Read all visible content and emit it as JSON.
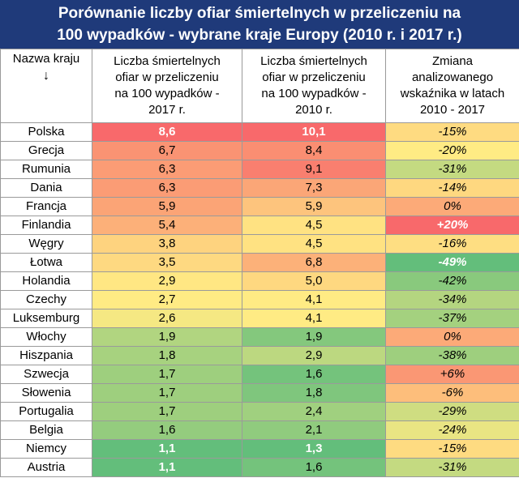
{
  "title_line1": "Porównanie liczby ofiar śmiertelnych w przeliczeniu na",
  "title_line2": "100 wypadków - wybrane kraje Europy (2010 r. i 2017 r.)",
  "headers": {
    "country": "Nazwa kraju",
    "country_arrow": "↓",
    "c2017": [
      "Liczba śmiertelnych",
      "ofiar w przeliczeniu",
      "na 100 wypadków -",
      "2017 r."
    ],
    "c2010": [
      "Liczba śmiertelnych",
      "ofiar w przeliczeniu",
      "na 100 wypadków -",
      "2010 r."
    ],
    "change": [
      "Zmiana",
      "analizowanego",
      "wskaźnika w latach",
      "2010 - 2017"
    ]
  },
  "rows": [
    {
      "country": "Polska",
      "v2017": "8,6",
      "v2010": "10,1",
      "change": "-15%"
    },
    {
      "country": "Grecja",
      "v2017": "6,7",
      "v2010": "8,4",
      "change": "-20%"
    },
    {
      "country": "Rumunia",
      "v2017": "6,3",
      "v2010": "9,1",
      "change": "-31%"
    },
    {
      "country": "Dania",
      "v2017": "6,3",
      "v2010": "7,3",
      "change": "-14%"
    },
    {
      "country": "Francja",
      "v2017": "5,9",
      "v2010": "5,9",
      "change": "0%"
    },
    {
      "country": "Finlandia",
      "v2017": "5,4",
      "v2010": "4,5",
      "change": "+20%"
    },
    {
      "country": "Węgry",
      "v2017": "3,8",
      "v2010": "4,5",
      "change": "-16%"
    },
    {
      "country": "Łotwa",
      "v2017": "3,5",
      "v2010": "6,8",
      "change": "-49%"
    },
    {
      "country": "Holandia",
      "v2017": "2,9",
      "v2010": "5,0",
      "change": "-42%"
    },
    {
      "country": "Czechy",
      "v2017": "2,7",
      "v2010": "4,1",
      "change": "-34%"
    },
    {
      "country": "Luksemburg",
      "v2017": "2,6",
      "v2010": "4,1",
      "change": "-37%"
    },
    {
      "country": "Włochy",
      "v2017": "1,9",
      "v2010": "1,9",
      "change": "0%"
    },
    {
      "country": "Hiszpania",
      "v2017": "1,8",
      "v2010": "2,9",
      "change": "-38%"
    },
    {
      "country": "Szwecja",
      "v2017": "1,7",
      "v2010": "1,6",
      "change": "+6%"
    },
    {
      "country": "Słowenia",
      "v2017": "1,7",
      "v2010": "1,8",
      "change": "-6%"
    },
    {
      "country": "Portugalia",
      "v2017": "1,7",
      "v2010": "2,4",
      "change": "-29%"
    },
    {
      "country": "Belgia",
      "v2017": "1,6",
      "v2010": "2,1",
      "change": "-24%"
    },
    {
      "country": "Niemcy",
      "v2017": "1,1",
      "v2010": "1,3",
      "change": "-15%"
    },
    {
      "country": "Austria",
      "v2017": "1,1",
      "v2010": "1,6",
      "change": "-31%"
    }
  ],
  "colors": {
    "title_bg": "#1f3a7a",
    "high": "#f8696b",
    "mid": "#ffeb84",
    "low": "#63be7b"
  },
  "chart_data": {
    "type": "table",
    "title": "Porównanie liczby ofiar śmiertelnych w przeliczeniu na 100 wypadków - wybrane kraje Europy (2010 r. i 2017 r.)",
    "columns": [
      "Nazwa kraju",
      "Liczba śmiertelnych ofiar w przeliczeniu na 100 wypadków - 2017 r.",
      "Liczba śmiertelnych ofiar w przeliczeniu na 100 wypadków - 2010 r.",
      "Zmiana analizowanego wskaźnika w latach 2010 - 2017"
    ],
    "categories": [
      "Polska",
      "Grecja",
      "Rumunia",
      "Dania",
      "Francja",
      "Finlandia",
      "Węgry",
      "Łotwa",
      "Holandia",
      "Czechy",
      "Luksemburg",
      "Włochy",
      "Hiszpania",
      "Szwecja",
      "Słowenia",
      "Portugalia",
      "Belgia",
      "Niemcy",
      "Austria"
    ],
    "series": [
      {
        "name": "2017 r.",
        "values": [
          8.6,
          6.7,
          6.3,
          6.3,
          5.9,
          5.4,
          3.8,
          3.5,
          2.9,
          2.7,
          2.6,
          1.9,
          1.8,
          1.7,
          1.7,
          1.7,
          1.6,
          1.1,
          1.1
        ]
      },
      {
        "name": "2010 r.",
        "values": [
          10.1,
          8.4,
          9.1,
          7.3,
          5.9,
          4.5,
          4.5,
          6.8,
          5.0,
          4.1,
          4.1,
          1.9,
          2.9,
          1.6,
          1.8,
          2.4,
          2.1,
          1.3,
          1.6
        ]
      },
      {
        "name": "2010 - 2017",
        "values": [
          -15,
          -20,
          -31,
          -14,
          0,
          20,
          -16,
          -49,
          -42,
          -34,
          -37,
          0,
          -38,
          6,
          -6,
          -29,
          -24,
          -15,
          -31
        ]
      }
    ]
  }
}
